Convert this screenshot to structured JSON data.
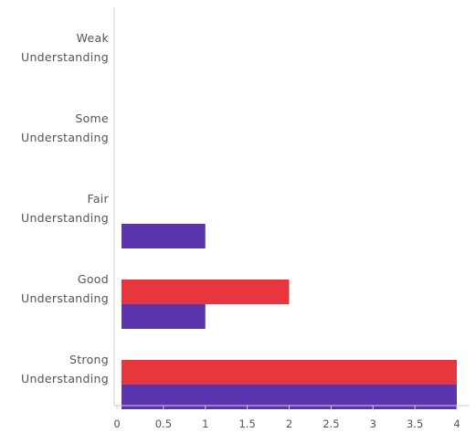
{
  "chart_data": {
    "type": "bar",
    "orientation": "horizontal",
    "title": "",
    "xlabel": "",
    "ylabel": "",
    "categories": [
      [
        "Weak",
        "Understanding"
      ],
      [
        "Some",
        "Understanding"
      ],
      [
        "Fair",
        "Understanding"
      ],
      [
        "Good",
        "Understanding"
      ],
      [
        "Strong",
        "Understanding"
      ]
    ],
    "series": [
      {
        "color": "#e8363e",
        "values": [
          0,
          0,
          0,
          2,
          4
        ]
      },
      {
        "color": "#5b35ae",
        "values": [
          0,
          0,
          1,
          1,
          4
        ]
      }
    ],
    "xlim": [
      0,
      4
    ],
    "xticks": [
      "0",
      "0.5",
      "1",
      "1.5",
      "2",
      "2.5",
      "3",
      "3.5",
      "4"
    ],
    "grid": false,
    "legend": "none"
  }
}
